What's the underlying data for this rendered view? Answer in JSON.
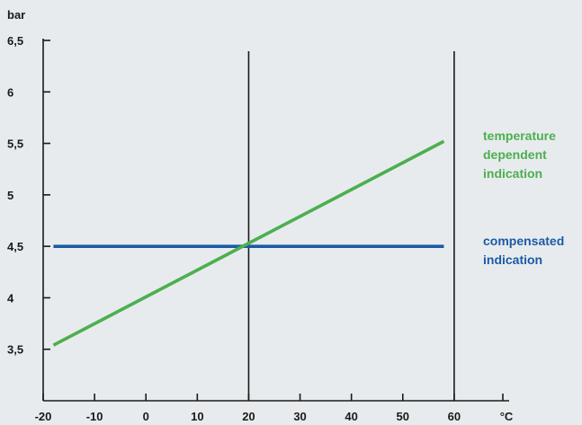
{
  "chart_data": {
    "type": "line",
    "title": "",
    "ylabel": "bar",
    "xlabel": "°C",
    "xlim": [
      -20,
      70
    ],
    "ylim": [
      3,
      6.5
    ],
    "x_ticks": [
      -20,
      -10,
      0,
      10,
      20,
      30,
      40,
      50,
      60
    ],
    "x_tick_labels": [
      "-20",
      "-10",
      "0",
      "10",
      "20",
      "30",
      "40",
      "50",
      "60"
    ],
    "y_ticks": [
      3.5,
      4,
      4.5,
      5,
      5.5,
      6,
      6.5
    ],
    "y_tick_labels": [
      "3,5",
      "4",
      "4,5",
      "5",
      "5,5",
      "6",
      "6,5"
    ],
    "reference_lines_x": [
      20,
      60
    ],
    "grid": false,
    "legend_placement": "right",
    "series": [
      {
        "name_lines": [
          "temperature",
          "dependent",
          "indication"
        ],
        "color": "#4caf50",
        "points": [
          [
            -18,
            3.54
          ],
          [
            58,
            5.52
          ]
        ]
      },
      {
        "name_lines": [
          "compensated",
          "indication"
        ],
        "color": "#1a5ba6",
        "points": [
          [
            -18,
            4.5
          ],
          [
            58,
            4.5
          ]
        ]
      }
    ]
  }
}
